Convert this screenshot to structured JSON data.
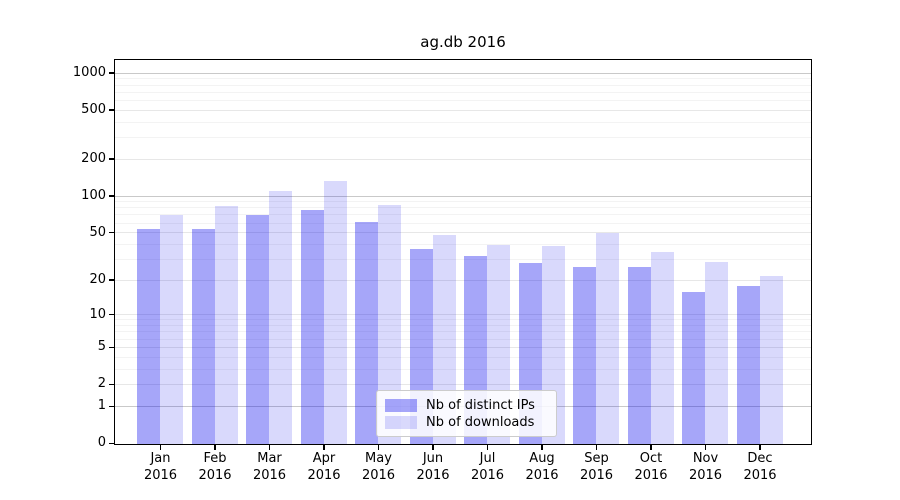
{
  "figure": {
    "title": "ag.db 2016"
  },
  "chart_data": {
    "type": "bar",
    "title": "ag.db 2016",
    "categories": [
      "Jan",
      "Feb",
      "Mar",
      "Apr",
      "May",
      "Jun",
      "Jul",
      "Aug",
      "Sep",
      "Oct",
      "Nov",
      "Dec"
    ],
    "year_label": "2016",
    "series": [
      {
        "name": "Nb of distinct IPs",
        "color": "rgba(0,0,238,0.35)",
        "values": [
          54,
          54,
          71,
          78,
          62,
          37,
          32,
          28,
          26,
          26,
          16,
          18
        ]
      },
      {
        "name": "Nb of downloads",
        "color": "rgba(0,0,238,0.15)",
        "values": [
          70,
          83,
          110,
          133,
          86,
          48,
          40,
          39,
          50,
          35,
          29,
          22
        ]
      }
    ],
    "xlabel": "",
    "ylabel": "",
    "yscale": "log1p",
    "ylim": [
      0,
      1300
    ],
    "y_ticks": [
      0,
      1,
      2,
      5,
      10,
      20,
      50,
      100,
      200,
      500,
      1000
    ],
    "minor_gridline_values": [
      3,
      4,
      6,
      7,
      8,
      9,
      30,
      40,
      60,
      70,
      80,
      90,
      300,
      400,
      600,
      700,
      800,
      900
    ],
    "emphasized_gridline_values": [
      1,
      100,
      1000
    ],
    "grid": true,
    "legend_position": "lower center",
    "colors": {
      "grid_major": "#e7e7e7",
      "grid_emphasized": "#c9c9c9",
      "grid_minor": "#f3f3f3",
      "spine": "#000000",
      "legend_border": "#cccccc"
    }
  }
}
